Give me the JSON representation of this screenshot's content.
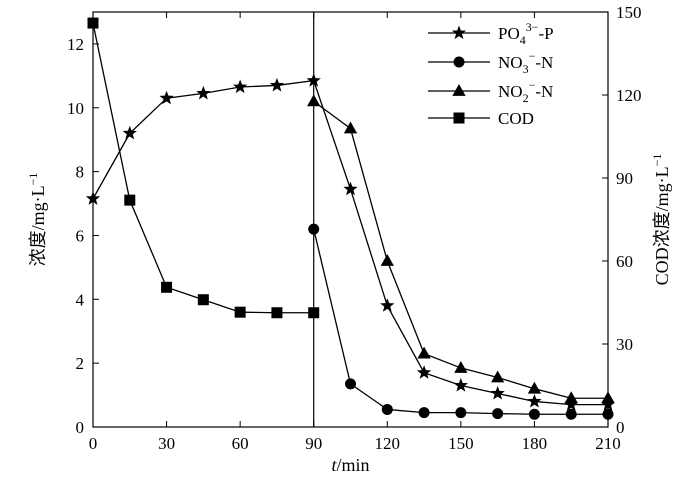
{
  "chart_data": {
    "type": "line",
    "title": "",
    "x_axis": {
      "label_var": "t",
      "label_unit": "/min",
      "min": 0,
      "max": 210,
      "ticks": [
        0,
        30,
        60,
        90,
        120,
        150,
        180,
        210
      ]
    },
    "y_left": {
      "label": "浓度/mg·L",
      "label_sup": "−1",
      "min": 0,
      "max": 13,
      "ticks": [
        0,
        2,
        4,
        6,
        8,
        10,
        12
      ]
    },
    "y_right": {
      "label": "COD浓度/mg·L",
      "label_sup": "−1",
      "min": 0,
      "max": 150,
      "ticks": [
        0,
        30,
        60,
        90,
        120,
        150
      ]
    },
    "vertical_line_x": 90,
    "legend_position": "top-right",
    "series": [
      {
        "name": "PO4³⁻-P",
        "legend_main": "PO",
        "legend_sub": "4",
        "legend_sup": "3−",
        "legend_tail": "-P",
        "marker": "star",
        "axis": "left",
        "x": [
          0,
          15,
          30,
          45,
          60,
          75,
          90,
          105,
          120,
          135,
          150,
          165,
          180,
          195,
          210
        ],
        "y": [
          7.15,
          9.2,
          10.3,
          10.45,
          10.65,
          10.7,
          10.85,
          7.45,
          3.8,
          1.7,
          1.3,
          1.05,
          0.8,
          0.7,
          0.7
        ]
      },
      {
        "name": "NO3⁻-N",
        "legend_main": "NO",
        "legend_sub": "3",
        "legend_sup": "−",
        "legend_tail": "-N",
        "marker": "circle",
        "axis": "left",
        "x": [
          90,
          105,
          120,
          135,
          150,
          165,
          180,
          195,
          210
        ],
        "y": [
          6.2,
          1.35,
          0.55,
          0.45,
          0.45,
          0.42,
          0.4,
          0.4,
          0.4
        ]
      },
      {
        "name": "NO2⁻-N",
        "legend_main": "NO",
        "legend_sub": "2",
        "legend_sup": "−",
        "legend_tail": "-N",
        "marker": "triangle",
        "axis": "left",
        "x": [
          90,
          105,
          120,
          135,
          150,
          165,
          180,
          195,
          210
        ],
        "y": [
          10.2,
          9.35,
          5.2,
          2.3,
          1.85,
          1.55,
          1.2,
          0.9,
          0.9
        ]
      },
      {
        "name": "COD",
        "legend_main": "COD",
        "legend_sub": "",
        "legend_sup": "",
        "legend_tail": "",
        "marker": "square",
        "axis": "right",
        "x": [
          0,
          15,
          30,
          45,
          60,
          75,
          90
        ],
        "y": [
          146,
          82,
          50.5,
          46,
          41.5,
          41.3,
          41.3
        ]
      }
    ]
  }
}
